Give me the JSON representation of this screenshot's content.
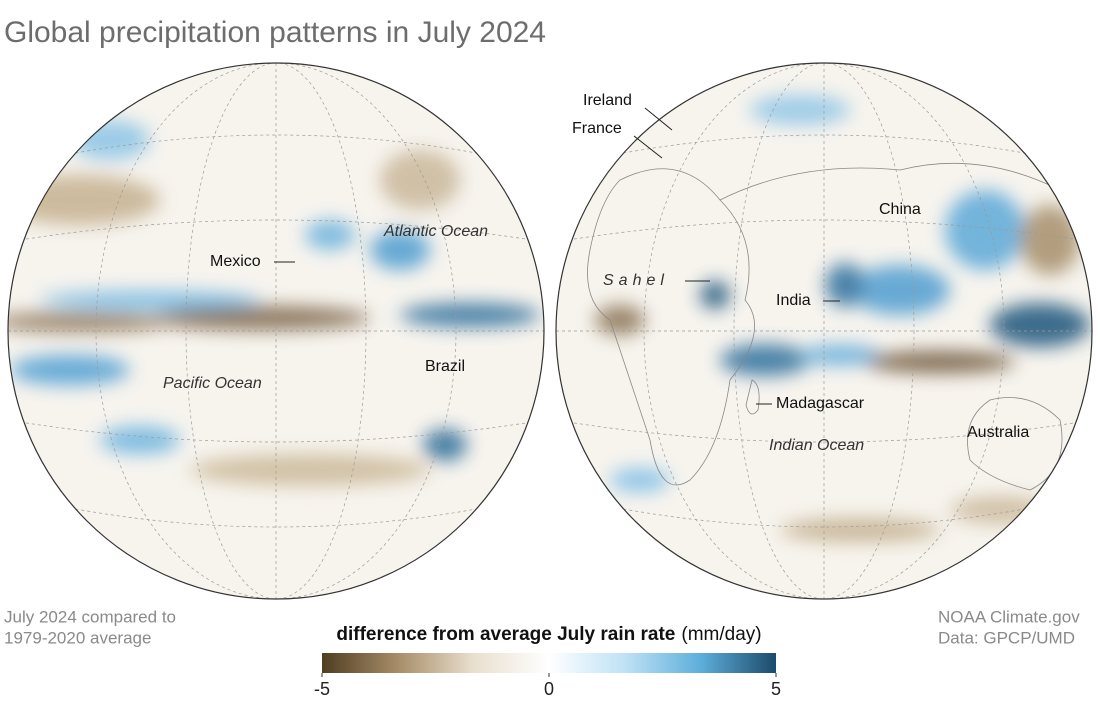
{
  "header": {
    "title": "Global precipitation patterns in July 2024"
  },
  "note": [
    "July 2024 compared to",
    "1979-2020 average"
  ],
  "credit": [
    "NOAA Climate.gov",
    "Data: GPCP/UMD"
  ],
  "map": {
    "labels": {
      "western": [
        "Mexico",
        "Atlantic Ocean",
        "Brazil",
        "Pacific Ocean"
      ],
      "eastern": [
        "Ireland",
        "France",
        "Sahel",
        "China",
        "India",
        "Madagascar",
        "Indian Ocean",
        "Australia"
      ]
    }
  },
  "legend": {
    "title": "difference from average July rain rate",
    "unit": "(mm/day)",
    "range": [
      -5,
      5
    ],
    "ticks": [
      -5,
      0,
      5
    ],
    "colors": [
      "#4f3d22",
      "#a78d67",
      "#e9dfce",
      "#ffffff",
      "#bfe2f5",
      "#5eaedc",
      "#1c4a6a"
    ]
  }
}
